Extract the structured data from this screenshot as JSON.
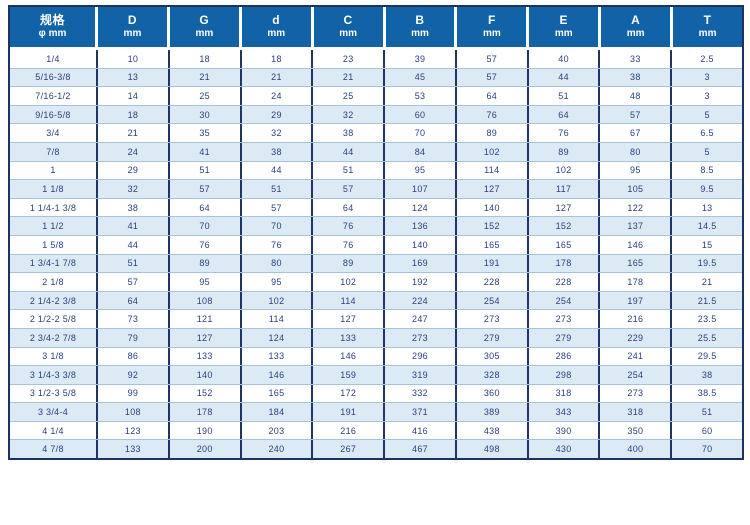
{
  "table": {
    "columns": [
      {
        "line1": "规格",
        "line2": "φ mm"
      },
      {
        "line1": "D",
        "line2": "mm"
      },
      {
        "line1": "G",
        "line2": "mm"
      },
      {
        "line1": "d",
        "line2": "mm"
      },
      {
        "line1": "C",
        "line2": "mm"
      },
      {
        "line1": "B",
        "line2": "mm"
      },
      {
        "line1": "F",
        "line2": "mm"
      },
      {
        "line1": "E",
        "line2": "mm"
      },
      {
        "line1": "A",
        "line2": "mm"
      },
      {
        "line1": "T",
        "line2": "mm"
      }
    ],
    "rows": [
      {
        "spec": "1/4",
        "values": [
          "10",
          "18",
          "18",
          "23",
          "39",
          "57",
          "40",
          "33",
          "2.5"
        ]
      },
      {
        "spec": "5/16-3/8",
        "values": [
          "13",
          "21",
          "21",
          "21",
          "45",
          "57",
          "44",
          "38",
          "3"
        ]
      },
      {
        "spec": "7/16-1/2",
        "values": [
          "14",
          "25",
          "24",
          "25",
          "53",
          "64",
          "51",
          "48",
          "3"
        ]
      },
      {
        "spec": "9/16-5/8",
        "values": [
          "18",
          "30",
          "29",
          "32",
          "60",
          "76",
          "64",
          "57",
          "5"
        ]
      },
      {
        "spec": "3/4",
        "values": [
          "21",
          "35",
          "32",
          "38",
          "70",
          "89",
          "76",
          "67",
          "6.5"
        ]
      },
      {
        "spec": "7/8",
        "values": [
          "24",
          "41",
          "38",
          "44",
          "84",
          "102",
          "89",
          "80",
          "5"
        ]
      },
      {
        "spec": "1",
        "values": [
          "29",
          "51",
          "44",
          "51",
          "95",
          "114",
          "102",
          "95",
          "8.5"
        ]
      },
      {
        "spec": "1 1/8",
        "values": [
          "32",
          "57",
          "51",
          "57",
          "107",
          "127",
          "117",
          "105",
          "9.5"
        ]
      },
      {
        "spec": "1 1/4-1 3/8",
        "values": [
          "38",
          "64",
          "57",
          "64",
          "124",
          "140",
          "127",
          "122",
          "13"
        ]
      },
      {
        "spec": "1 1/2",
        "values": [
          "41",
          "70",
          "70",
          "76",
          "136",
          "152",
          "152",
          "137",
          "14.5"
        ]
      },
      {
        "spec": "1 5/8",
        "values": [
          "44",
          "76",
          "76",
          "76",
          "140",
          "165",
          "165",
          "146",
          "15"
        ]
      },
      {
        "spec": "1 3/4-1 7/8",
        "values": [
          "51",
          "89",
          "80",
          "89",
          "169",
          "191",
          "178",
          "165",
          "19.5"
        ]
      },
      {
        "spec": "2 1/8",
        "values": [
          "57",
          "95",
          "95",
          "102",
          "192",
          "228",
          "228",
          "178",
          "21"
        ]
      },
      {
        "spec": "2 1/4-2 3/8",
        "values": [
          "64",
          "108",
          "102",
          "114",
          "224",
          "254",
          "254",
          "197",
          "21.5"
        ]
      },
      {
        "spec": "2 1/2-2 5/8",
        "values": [
          "73",
          "121",
          "114",
          "127",
          "247",
          "273",
          "273",
          "216",
          "23.5"
        ]
      },
      {
        "spec": "2 3/4-2 7/8",
        "values": [
          "79",
          "127",
          "124",
          "133",
          "273",
          "279",
          "279",
          "229",
          "25.5"
        ]
      },
      {
        "spec": "3 1/8",
        "values": [
          "86",
          "133",
          "133",
          "146",
          "296",
          "305",
          "286",
          "241",
          "29.5"
        ]
      },
      {
        "spec": "3 1/4-3 3/8",
        "values": [
          "92",
          "140",
          "146",
          "159",
          "319",
          "328",
          "298",
          "254",
          "38"
        ]
      },
      {
        "spec": "3 1/2-3 5/8",
        "values": [
          "99",
          "152",
          "165",
          "172",
          "332",
          "360",
          "318",
          "273",
          "38.5"
        ]
      },
      {
        "spec": "3 3/4-4",
        "values": [
          "108",
          "178",
          "184",
          "191",
          "371",
          "389",
          "343",
          "318",
          "51"
        ]
      },
      {
        "spec": "4 1/4",
        "values": [
          "123",
          "190",
          "203",
          "216",
          "416",
          "438",
          "390",
          "350",
          "60"
        ]
      },
      {
        "spec": "4 7/8",
        "values": [
          "133",
          "200",
          "240",
          "267",
          "467",
          "498",
          "430",
          "400",
          "70"
        ]
      }
    ]
  },
  "colors": {
    "header_bg": "#1162a7",
    "header_text": "#ffffff",
    "border_dark": "#1d3260",
    "column_rule": "#203467",
    "row_alt_bg": "#dceaf6",
    "row_line": "#a3c3de",
    "body_text": "#2a4080",
    "page_bg": "#ffffff"
  }
}
